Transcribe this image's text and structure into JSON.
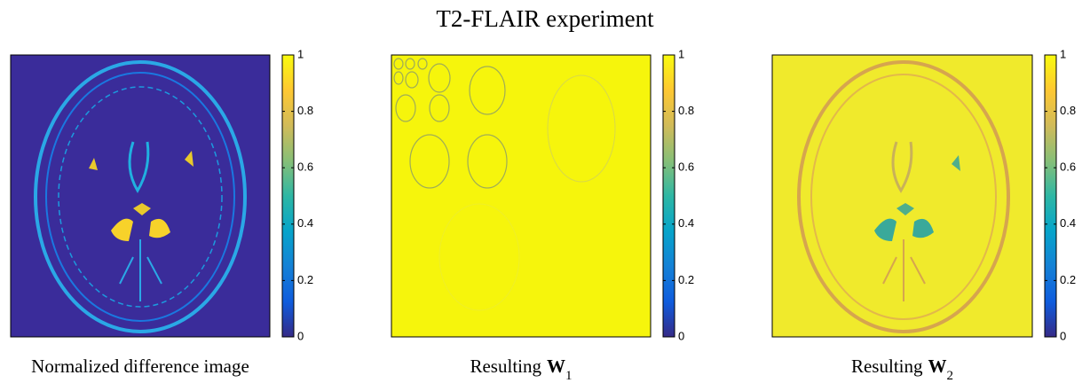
{
  "title": "T2-FLAIR experiment",
  "colormap": [
    "#352a87",
    "#0f5cdd",
    "#1481d6",
    "#06a4ca",
    "#2eb7a4",
    "#87bf77",
    "#d1bb59",
    "#fec832",
    "#f9fb0e"
  ],
  "panels": [
    {
      "caption": {
        "text": "Normalized difference image"
      },
      "colorbar": {
        "lim": [
          0,
          1
        ],
        "ticks": [
          0,
          0.2,
          0.4,
          0.6,
          0.8,
          1
        ]
      }
    },
    {
      "caption": {
        "text": "Resulting",
        "symbol": "W",
        "subscript": "1"
      },
      "colorbar": {
        "lim": [
          0,
          1
        ],
        "ticks": [
          0,
          0.2,
          0.4,
          0.6,
          0.8,
          1
        ]
      }
    },
    {
      "caption": {
        "text": "Resulting",
        "symbol": "W",
        "subscript": "2"
      },
      "colorbar": {
        "lim": [
          0,
          1
        ],
        "ticks": [
          0,
          0.2,
          0.4,
          0.6,
          0.8,
          1
        ]
      }
    }
  ]
}
